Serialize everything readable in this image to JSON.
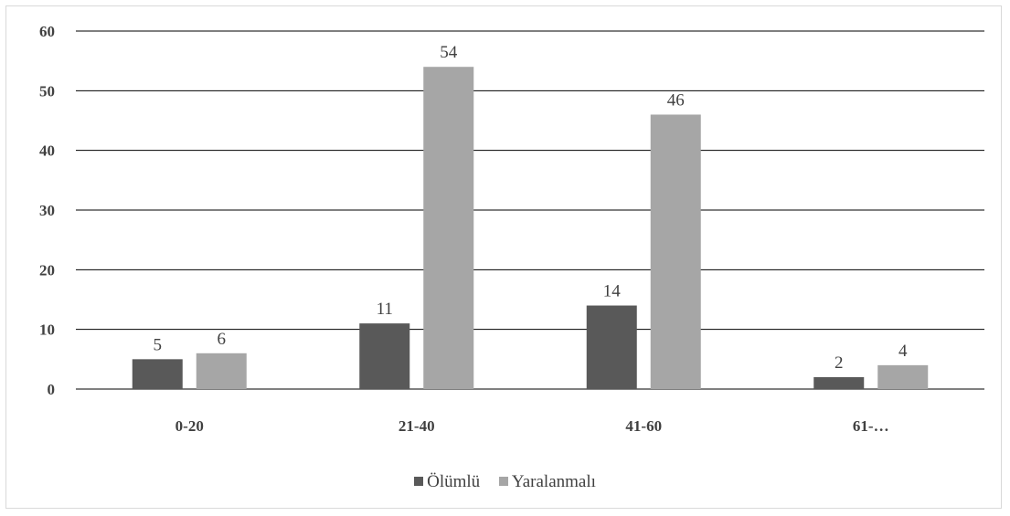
{
  "chart_data": {
    "type": "bar",
    "categories": [
      "0-20",
      "21-40",
      "41-60",
      "61-…"
    ],
    "series": [
      {
        "name": "Ölümlü",
        "values": [
          5,
          11,
          14,
          2
        ],
        "color": "#595959"
      },
      {
        "name": "Yaralanmalı",
        "values": [
          6,
          54,
          46,
          4
        ],
        "color": "#a6a6a6"
      }
    ],
    "ylim": [
      0,
      60
    ],
    "yticks": [
      "0",
      "10",
      "20",
      "30",
      "40",
      "50",
      "60"
    ],
    "grid": true,
    "legend_position": "bottom",
    "data_labels": true
  }
}
